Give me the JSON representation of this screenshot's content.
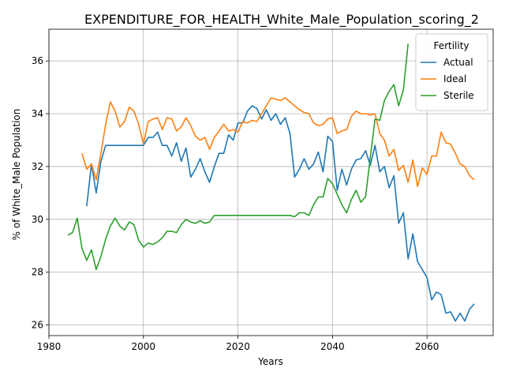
{
  "chart_data": {
    "type": "line",
    "title": "EXPENDITURE_FOR_HEALTH_White_Male_Population_scoring_2",
    "xlabel": "Years",
    "ylabel": "% of White_Male Population",
    "xlim": [
      1980,
      2074
    ],
    "ylim": [
      25.6,
      37.2
    ],
    "xticks": [
      1980,
      2000,
      2020,
      2040,
      2060
    ],
    "yticks": [
      26,
      28,
      30,
      32,
      34,
      36
    ],
    "grid": true,
    "legend": {
      "title": "Fertility",
      "position": "top-right"
    },
    "series": [
      {
        "name": "Actual",
        "color": "#1f77b4",
        "x": [
          1988,
          1989,
          1990,
          1991,
          1992,
          1993,
          1994,
          1995,
          1996,
          1997,
          1998,
          1999,
          2000,
          2001,
          2002,
          2003,
          2004,
          2005,
          2006,
          2007,
          2008,
          2009,
          2010,
          2011,
          2012,
          2013,
          2014,
          2015,
          2016,
          2017,
          2018,
          2019,
          2020,
          2021,
          2022,
          2023,
          2024,
          2025,
          2026,
          2027,
          2028,
          2029,
          2030,
          2031,
          2032,
          2033,
          2034,
          2035,
          2036,
          2037,
          2038,
          2039,
          2040,
          2041,
          2042,
          2043,
          2044,
          2045,
          2046,
          2047,
          2048,
          2049,
          2050,
          2051,
          2052,
          2053,
          2054,
          2055,
          2056,
          2057,
          2058,
          2059,
          2060,
          2061,
          2062,
          2063,
          2064,
          2065,
          2066,
          2067,
          2068,
          2069,
          2070
        ],
        "y": [
          30.5,
          32.1,
          31.0,
          32.2,
          32.8,
          32.8,
          32.8,
          32.8,
          32.8,
          32.8,
          32.8,
          32.8,
          32.8,
          33.1,
          33.1,
          33.3,
          32.8,
          32.8,
          32.4,
          32.9,
          32.2,
          32.7,
          31.6,
          31.9,
          32.3,
          31.8,
          31.4,
          32.0,
          32.5,
          32.5,
          33.2,
          33.0,
          33.65,
          33.65,
          34.1,
          34.3,
          34.2,
          33.8,
          34.15,
          33.75,
          34.0,
          33.6,
          33.85,
          33.25,
          31.6,
          31.9,
          32.3,
          31.9,
          32.1,
          32.55,
          31.8,
          33.15,
          32.95,
          31.1,
          31.9,
          31.3,
          31.9,
          32.25,
          32.3,
          32.6,
          32.05,
          32.8,
          31.8,
          32.0,
          31.2,
          31.65,
          29.85,
          30.25,
          28.5,
          29.45,
          28.4,
          28.1,
          27.8,
          26.95,
          27.25,
          27.15,
          26.45,
          26.5,
          26.15,
          26.45,
          26.15,
          26.6,
          26.8
        ]
      },
      {
        "name": "Ideal",
        "color": "#ff7f0e",
        "x": [
          1987,
          1988,
          1989,
          1990,
          1991,
          1992,
          1993,
          1994,
          1995,
          1996,
          1997,
          1998,
          1999,
          2000,
          2001,
          2002,
          2003,
          2004,
          2005,
          2006,
          2007,
          2008,
          2009,
          2010,
          2011,
          2012,
          2013,
          2014,
          2015,
          2016,
          2017,
          2018,
          2019,
          2020,
          2021,
          2022,
          2023,
          2024,
          2025,
          2026,
          2027,
          2028,
          2029,
          2030,
          2031,
          2032,
          2033,
          2034,
          2035,
          2036,
          2037,
          2038,
          2039,
          2040,
          2041,
          2042,
          2043,
          2044,
          2045,
          2046,
          2047,
          2048,
          2049,
          2050,
          2051,
          2052,
          2053,
          2054,
          2055,
          2056,
          2057,
          2058,
          2059,
          2060,
          2061,
          2062,
          2063,
          2064,
          2065,
          2066,
          2067,
          2068,
          2069,
          2070
        ],
        "y": [
          32.5,
          31.9,
          32.1,
          31.5,
          32.5,
          33.6,
          34.45,
          34.1,
          33.5,
          33.7,
          34.25,
          34.1,
          33.6,
          32.85,
          33.7,
          33.8,
          33.85,
          33.4,
          33.85,
          33.8,
          33.35,
          33.5,
          33.85,
          33.55,
          33.15,
          33.0,
          33.1,
          32.65,
          33.1,
          33.35,
          33.6,
          33.35,
          33.4,
          33.3,
          33.7,
          33.65,
          33.75,
          33.7,
          34.0,
          34.3,
          34.6,
          34.55,
          34.5,
          34.6,
          34.45,
          34.3,
          34.15,
          34.05,
          34.0,
          33.65,
          33.55,
          33.6,
          33.8,
          33.85,
          33.25,
          33.35,
          33.4,
          33.9,
          34.1,
          34.0,
          34.0,
          33.95,
          34.0,
          33.25,
          33.0,
          32.4,
          32.65,
          31.85,
          32.05,
          31.4,
          32.25,
          31.25,
          31.95,
          31.7,
          32.4,
          32.4,
          33.3,
          32.9,
          32.85,
          32.5,
          32.1,
          32.0,
          31.65,
          31.5
        ]
      },
      {
        "name": "Sterile",
        "color": "#2ca02c",
        "x": [
          1984,
          1985,
          1986,
          1987,
          1988,
          1989,
          1990,
          1991,
          1992,
          1993,
          1994,
          1995,
          1996,
          1997,
          1998,
          1999,
          2000,
          2001,
          2002,
          2003,
          2004,
          2005,
          2006,
          2007,
          2008,
          2009,
          2010,
          2011,
          2012,
          2013,
          2014,
          2015,
          2016,
          2017,
          2018,
          2019,
          2020,
          2021,
          2022,
          2023,
          2024,
          2025,
          2026,
          2027,
          2028,
          2029,
          2030,
          2031,
          2032,
          2033,
          2034,
          2035,
          2036,
          2037,
          2038,
          2039,
          2040,
          2041,
          2042,
          2043,
          2044,
          2045,
          2046,
          2047,
          2048,
          2049,
          2050,
          2051,
          2052,
          2053,
          2054,
          2055,
          2056
        ],
        "y": [
          29.4,
          29.5,
          30.05,
          28.9,
          28.45,
          28.85,
          28.1,
          28.6,
          29.25,
          29.75,
          30.05,
          29.75,
          29.6,
          29.9,
          29.8,
          29.2,
          28.95,
          29.1,
          29.05,
          29.15,
          29.3,
          29.55,
          29.55,
          29.5,
          29.8,
          30.0,
          29.9,
          29.85,
          29.95,
          29.85,
          29.9,
          30.15,
          30.15,
          30.15,
          30.15,
          30.15,
          30.15,
          30.15,
          30.15,
          30.15,
          30.15,
          30.15,
          30.15,
          30.15,
          30.15,
          30.15,
          30.15,
          30.15,
          30.1,
          30.25,
          30.25,
          30.15,
          30.55,
          30.85,
          30.85,
          31.55,
          31.35,
          30.95,
          30.55,
          30.25,
          30.75,
          31.1,
          30.65,
          30.85,
          32.35,
          33.8,
          33.75,
          34.5,
          34.85,
          35.1,
          34.3,
          34.9,
          36.65
        ]
      }
    ]
  }
}
